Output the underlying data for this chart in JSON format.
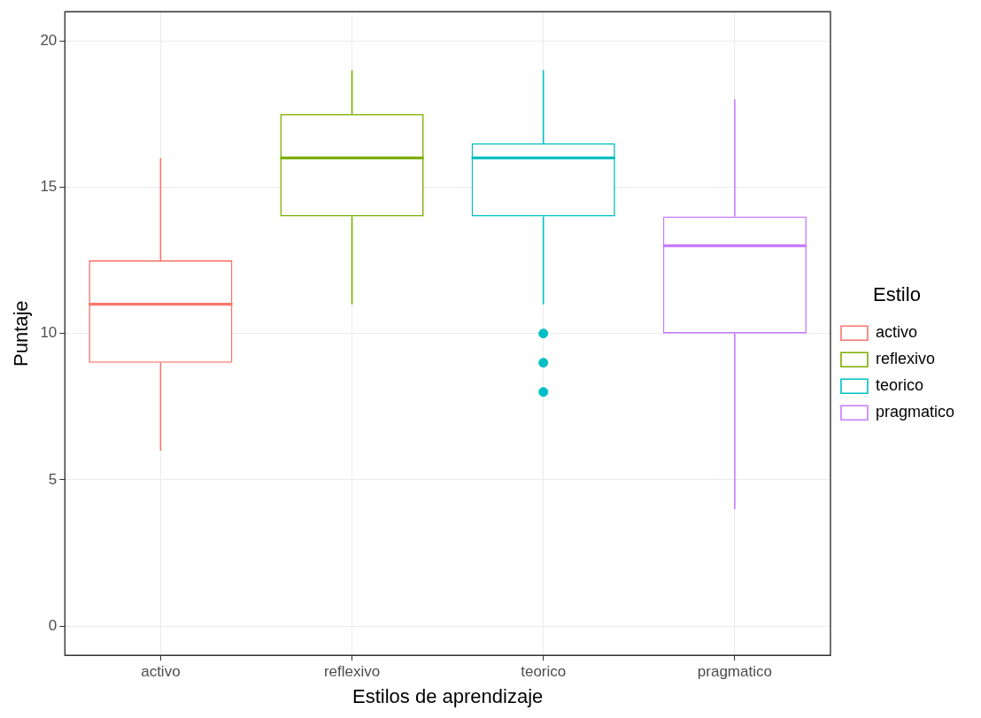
{
  "chart_data": {
    "type": "box",
    "xlabel": "Estilos de aprendizaje",
    "ylabel": "Puntaje",
    "legend_title": "Estilo",
    "categories": [
      "activo",
      "reflexivo",
      "teorico",
      "pragmatico"
    ],
    "series": [
      {
        "name": "activo",
        "color": "#f8766d",
        "boxes": [
          {
            "low": 6,
            "q1": 9,
            "median": 11,
            "q3": 12.5,
            "high": 16
          },
          null,
          null,
          null
        ]
      },
      {
        "name": "reflexivo",
        "color": "#7cae00",
        "boxes": [
          null,
          {
            "low": 11,
            "q1": 14,
            "median": 16,
            "q3": 17.5,
            "high": 19
          },
          null,
          null
        ]
      },
      {
        "name": "teorico",
        "color": "#00bfc4",
        "boxes": [
          null,
          null,
          {
            "low": 11,
            "q1": 14,
            "median": 16,
            "q3": 16.5,
            "high": 19,
            "outliers": [
              10,
              9,
              8
            ]
          },
          null
        ]
      },
      {
        "name": "pragmatico",
        "color": "#c77cff",
        "boxes": [
          null,
          null,
          null,
          {
            "low": 4,
            "q1": 10,
            "median": 13,
            "q3": 14,
            "high": 18
          }
        ]
      }
    ],
    "ylim": [
      -1,
      21
    ],
    "yticks": [
      0,
      5,
      10,
      15,
      20
    ],
    "grid": true,
    "legend": "right",
    "marker": "circle"
  }
}
